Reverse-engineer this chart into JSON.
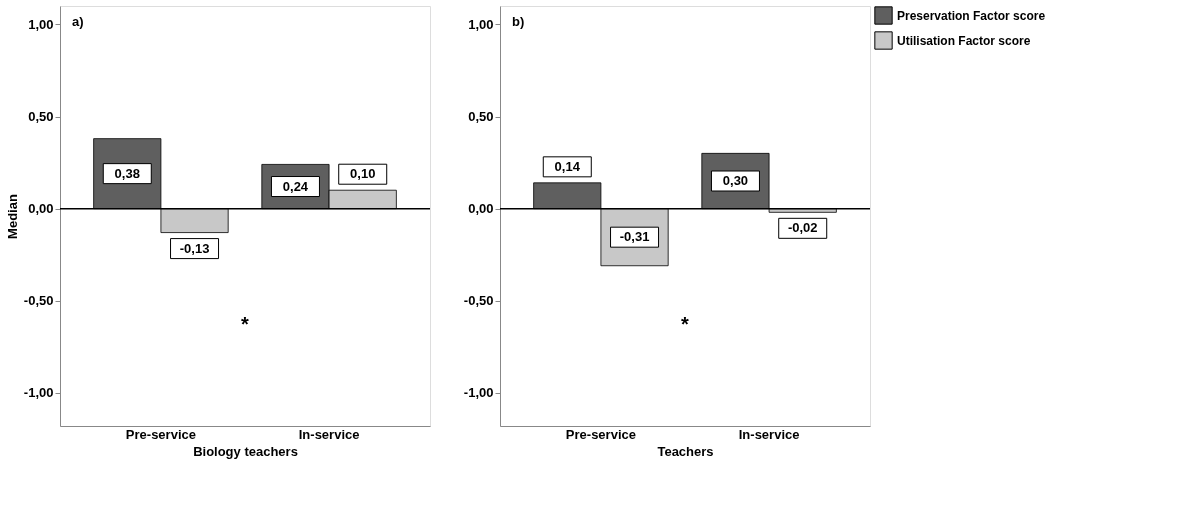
{
  "chart_data": [
    {
      "type": "bar",
      "annotations": [
        "a)",
        "*"
      ],
      "xlabel": "Biology teachers",
      "ylabel": "Median",
      "categories": [
        "Pre-service",
        "In-service"
      ],
      "series": [
        {
          "color": "#5f5f5f",
          "values": [
            0.38,
            0.24
          ],
          "value_labels": [
            "0,38",
            "0,24"
          ]
        },
        {
          "color": "#c8c8c8",
          "values": [
            -0.13,
            0.1
          ],
          "value_labels": [
            "-0,13",
            "0,10"
          ]
        }
      ],
      "ylim": [
        -1.18,
        1.1
      ],
      "yticks": [
        {
          "value": -1,
          "label": "-1,00"
        },
        {
          "value": -0.5,
          "label": "-0,50"
        },
        {
          "value": 0,
          "label": "0,00"
        },
        {
          "value": 0.5,
          "label": "0,50"
        },
        {
          "value": 1,
          "label": "1,00"
        }
      ],
      "ref_lines": [
        {
          "axis": "y",
          "value": 0,
          "color": "#000000"
        }
      ],
      "grid": false,
      "legend": false
    },
    {
      "type": "bar",
      "annotations": [
        "b)",
        "*"
      ],
      "xlabel": "Teachers",
      "categories": [
        "Pre-service",
        "In-service"
      ],
      "series": [
        {
          "name": "Preservation Factor score",
          "color": "#5f5f5f",
          "values": [
            0.14,
            0.3
          ],
          "value_labels": [
            "0,14",
            "0,30"
          ]
        },
        {
          "name": "Utilisation Factor score",
          "color": "#c8c8c8",
          "values": [
            -0.31,
            -0.02
          ],
          "value_labels": [
            "-0,31",
            "-0,02"
          ]
        }
      ],
      "ylim": [
        -1.18,
        1.1
      ],
      "yticks": [
        {
          "value": -1,
          "label": "-1,00"
        },
        {
          "value": -0.5,
          "label": "-0,50"
        },
        {
          "value": 0,
          "label": "0,00"
        },
        {
          "value": 0.5,
          "label": "0,50"
        },
        {
          "value": 1,
          "label": "1,00"
        }
      ],
      "ref_lines": [
        {
          "axis": "y",
          "value": 0,
          "color": "#000000"
        }
      ],
      "grid": false,
      "legend": "top right"
    }
  ]
}
